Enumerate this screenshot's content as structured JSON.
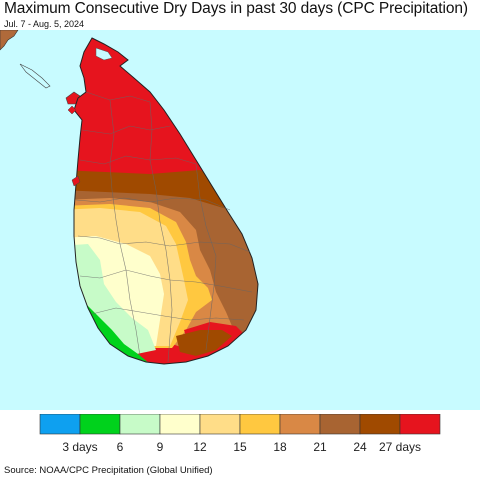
{
  "header": {
    "title": "Maximum Consecutive Dry Days in past 30 days (CPC Precipitation)",
    "date_range": "Jul. 7 - Aug. 5, 2024"
  },
  "map": {
    "ocean_color": "#c8fbff",
    "land_outside_color": "#b06a3a"
  },
  "legend": {
    "colors": [
      "#0ea0f0",
      "#00d21c",
      "#c7fbc8",
      "#ffffcc",
      "#ffdd88",
      "#ffc840",
      "#d98845",
      "#a86432",
      "#a04a00",
      "#e6141e"
    ],
    "labels": [
      "3 days",
      "6",
      "9",
      "12",
      "15",
      "18",
      "21",
      "24",
      "27 days"
    ]
  },
  "footer": {
    "source": "Source: NOAA/CPC Precipitation (Global Unified)"
  }
}
